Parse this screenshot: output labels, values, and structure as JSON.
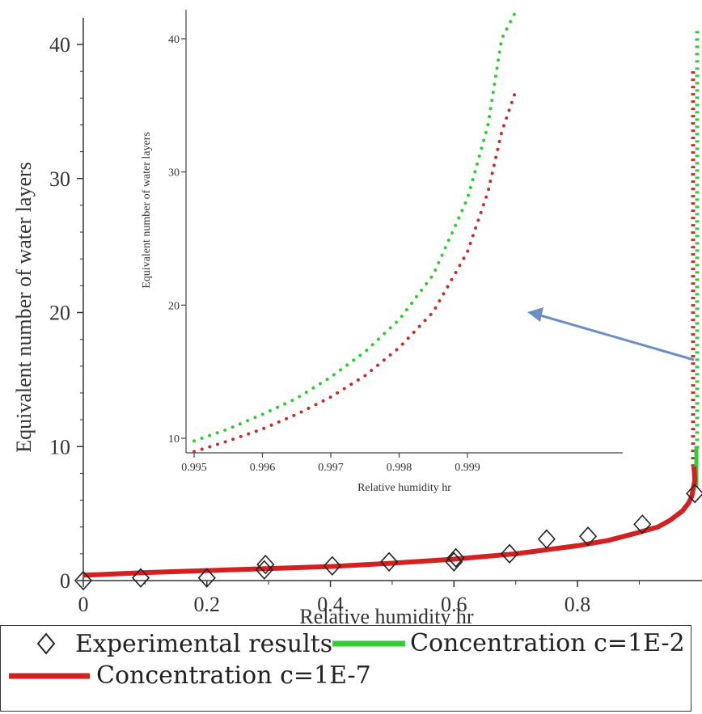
{
  "chart_data": [
    {
      "name": "main",
      "type": "line",
      "xlabel": "Relative humidity hr",
      "ylabel": "Equivalent number of water layers",
      "xlim": [
        0,
        1.0
      ],
      "ylim": [
        0,
        41
      ],
      "x_ticks": [
        "0",
        "0.2",
        "0.4",
        "0.6",
        "0.8"
      ],
      "y_ticks": [
        "0",
        "10",
        "20",
        "30",
        "40"
      ],
      "grid": false,
      "legend_position": "bottom",
      "series": [
        {
          "name": "Experimental results",
          "style": "markers",
          "marker": "diamond",
          "color": "#222222",
          "x": [
            0.0,
            0.093,
            0.2,
            0.293,
            0.295,
            0.403,
            0.495,
            0.6,
            0.603,
            0.69,
            0.75,
            0.817,
            0.905,
            0.99
          ],
          "y": [
            0.0,
            0.2,
            0.2,
            0.8,
            1.2,
            1.1,
            1.4,
            1.4,
            1.7,
            2.0,
            3.1,
            3.3,
            4.2,
            6.5
          ]
        },
        {
          "name": "Concentration c=1E-7",
          "style": "line",
          "color": "#d42020",
          "x": [
            0.0,
            0.1,
            0.2,
            0.3,
            0.4,
            0.5,
            0.6,
            0.7,
            0.8,
            0.85,
            0.9,
            0.93,
            0.95,
            0.97,
            0.98,
            0.985,
            0.99,
            0.995,
            0.999
          ],
          "y": [
            0.4,
            0.6,
            0.75,
            0.9,
            1.05,
            1.3,
            1.6,
            2.0,
            2.6,
            3.0,
            3.6,
            4.0,
            4.5,
            5.2,
            5.8,
            6.3,
            7.5,
            9.0,
            19.0
          ]
        },
        {
          "name": "Concentration c=1E-2",
          "style": "line",
          "color": "#33cc33",
          "x": [
            0.995,
            0.997,
            0.998,
            0.999,
            0.9995
          ],
          "y": [
            9.7,
            12.5,
            15.5,
            21.0,
            41.0
          ]
        }
      ]
    },
    {
      "name": "inset",
      "type": "line",
      "xlabel": "Relative humidity hr",
      "ylabel": "Equivalent number of water layers",
      "xlim": [
        0.995,
        0.9998
      ],
      "ylim": [
        9,
        42
      ],
      "x_ticks": [
        "0.995",
        "0.996",
        "0.997",
        "0.998",
        "0.999"
      ],
      "y_ticks": [
        "10",
        "20",
        "30",
        "40"
      ],
      "grid": false,
      "series": [
        {
          "name": "Concentration c=1E-2",
          "style": "dotted",
          "color": "#33cc33",
          "x": [
            0.995,
            0.9955,
            0.996,
            0.9965,
            0.997,
            0.9975,
            0.998,
            0.9985,
            0.999,
            0.9993,
            0.9995,
            0.9997
          ],
          "y": [
            9.8,
            10.7,
            11.8,
            13.0,
            14.6,
            16.5,
            18.9,
            22.3,
            28.0,
            33.5,
            40.0,
            42.0
          ]
        },
        {
          "name": "Concentration c=1E-7",
          "style": "dotted",
          "color": "#c03030",
          "x": [
            0.995,
            0.9955,
            0.996,
            0.9965,
            0.997,
            0.9975,
            0.998,
            0.9985,
            0.999,
            0.9993,
            0.9995,
            0.9997
          ],
          "y": [
            9.0,
            9.8,
            10.7,
            11.8,
            13.1,
            14.7,
            16.8,
            19.5,
            24.0,
            28.5,
            33.0,
            36.0
          ]
        }
      ]
    }
  ],
  "legend": {
    "entries": [
      {
        "label": "Experimental results",
        "symbol": "diamond",
        "color": "#222222"
      },
      {
        "label": "Concentration c=1E-2",
        "symbol": "line",
        "color": "#33cc33"
      },
      {
        "label": "Concentration c=1E-7",
        "symbol": "line",
        "color": "#d42020"
      }
    ]
  },
  "annotation": {
    "arrow_color": "#6b8fc4"
  }
}
